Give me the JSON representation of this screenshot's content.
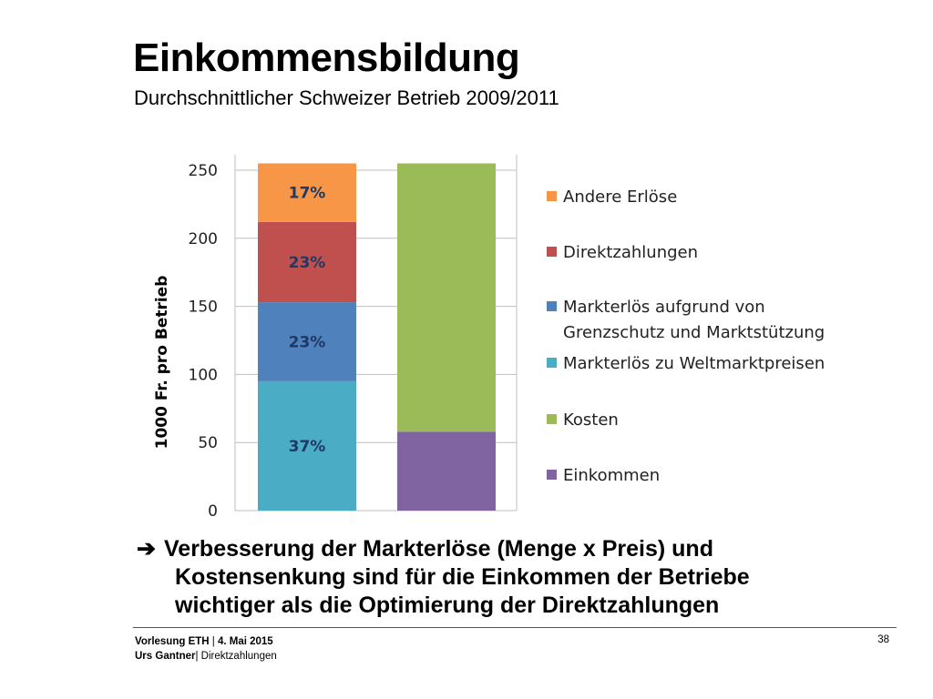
{
  "slide": {
    "title": "Einkommensbildung",
    "subtitle": "Durchschnittlicher Schweizer Betrieb 2009/2011",
    "message": {
      "arrow": "",
      "line1": "Verbesserung der Markterlöse (Menge x Preis) und",
      "line2": "Kostensenkung sind für die Einkommen der Betriebe",
      "line3": "wichtiger als die Optimierung der Direktzahlungen"
    },
    "footer": {
      "lecture": "Vorlesung ETH",
      "date": "4. Mai 2015",
      "author": "Urs Gantner",
      "topic": "Direktzahlungen",
      "page": "38"
    }
  },
  "chart_data": {
    "type": "bar",
    "stacked": true,
    "title": "",
    "xlabel": "",
    "ylabel": "1000 Fr. pro Betrieb",
    "ylim": [
      0,
      250
    ],
    "yticks": [
      0,
      50,
      100,
      150,
      200,
      250
    ],
    "grid": true,
    "legend_position": "right",
    "categories": [
      "",
      ""
    ],
    "series": [
      {
        "name": "Markterlös zu Weltmarktpreisen",
        "color": "#4BACC6",
        "values": [
          95,
          0
        ],
        "label": "37%"
      },
      {
        "name": "Markterlös aufgrund von Grenzschutz und Marktstützung",
        "color": "#4F81BD",
        "values": [
          58,
          0
        ],
        "label": "23%"
      },
      {
        "name": "Direktzahlungen",
        "color": "#C0504D",
        "values": [
          59,
          0
        ],
        "label": "23%"
      },
      {
        "name": "Andere Erlöse",
        "color": "#F79646",
        "values": [
          43,
          0
        ],
        "label": "17%"
      },
      {
        "name": "Einkommen",
        "color": "#8064A2",
        "values": [
          0,
          58
        ],
        "label": ""
      },
      {
        "name": "Kosten",
        "color": "#9BBB59",
        "values": [
          0,
          197
        ],
        "label": ""
      }
    ],
    "legend_order": [
      "Andere Erlöse",
      "Direktzahlungen",
      "Markterlös aufgrund von Grenzschutz und Marktstützung",
      "Markterlös zu Weltmarktpreisen",
      "Kosten",
      "Einkommen"
    ],
    "legend_lines": {
      "Markterlös aufgrund von Grenzschutz und Marktstützung": [
        "Markterlös aufgrund von",
        "Grenzschutz und Marktstützung"
      ]
    }
  }
}
